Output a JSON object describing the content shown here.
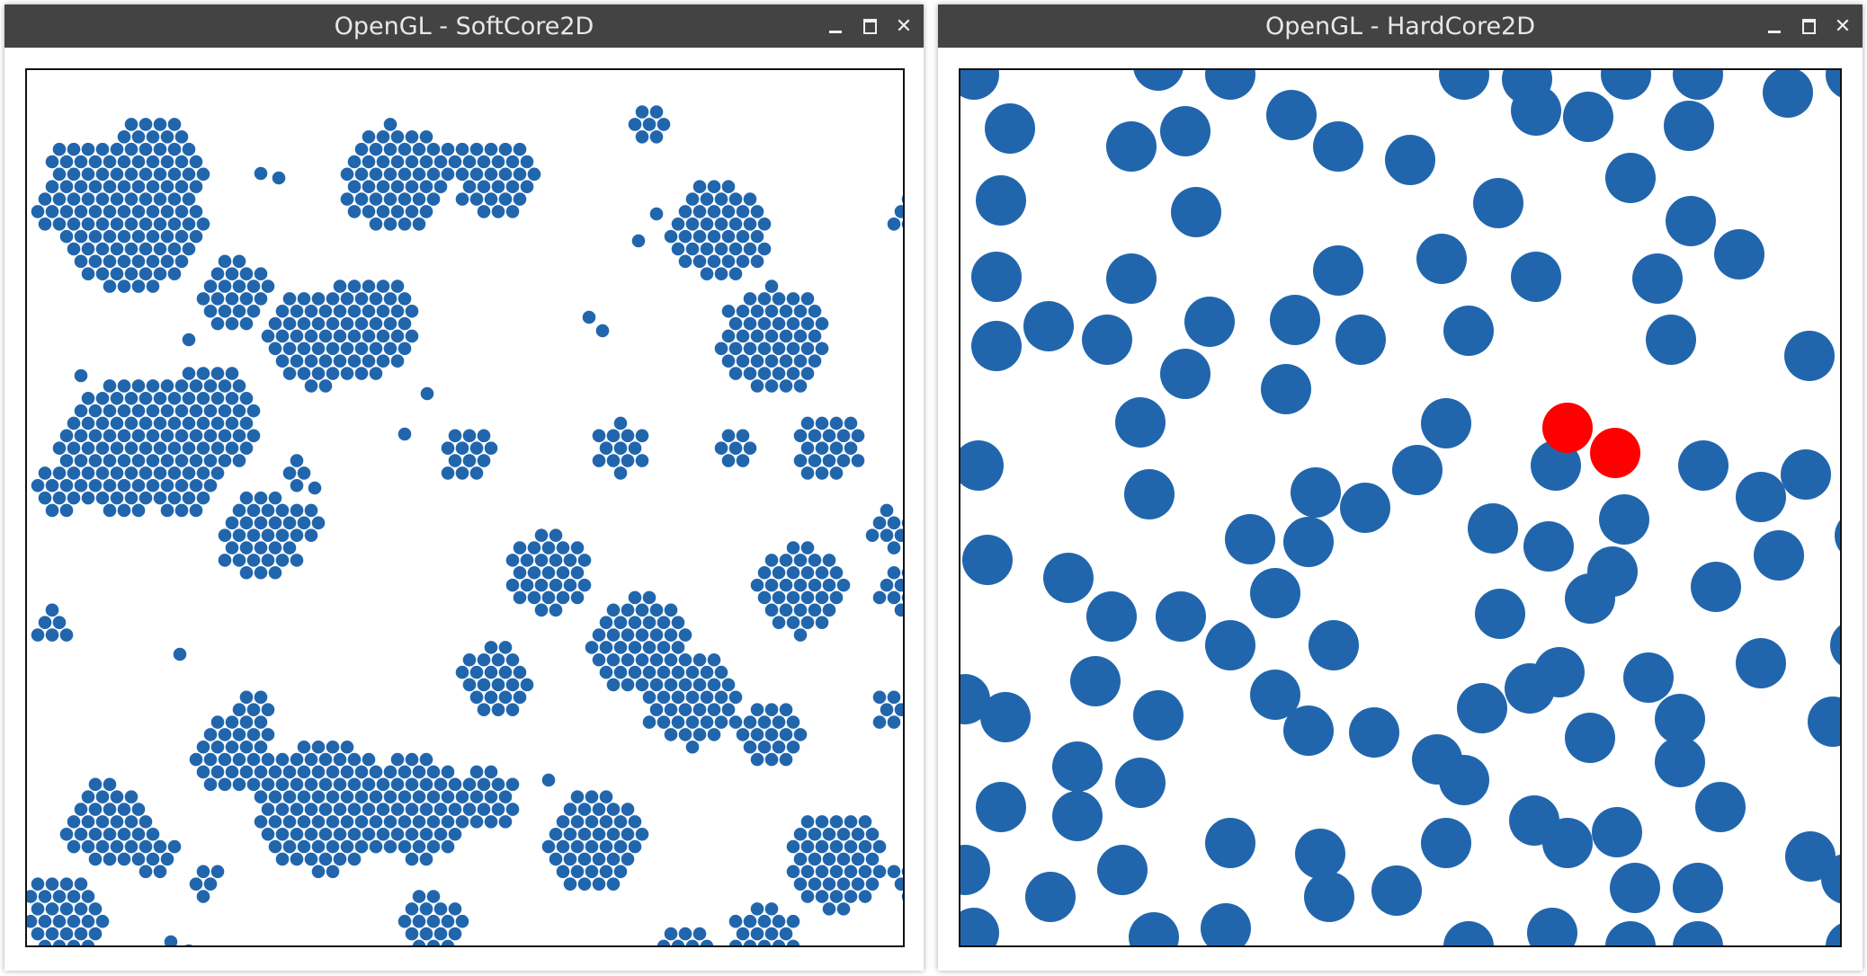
{
  "windows": [
    {
      "title": "OpenGL - SoftCore2D",
      "simulation": "soft-core",
      "particle_color": "#2166ad",
      "controls": [
        "minimize-icon",
        "maximize-icon",
        "close-icon"
      ]
    },
    {
      "title": "OpenGL - HardCore2D",
      "simulation": "hard-core",
      "particle_color": "#2166ad",
      "highlight_color": "#ff0000",
      "highlighted_particles": 2,
      "controls": [
        "minimize-icon",
        "maximize-icon",
        "close-icon"
      ]
    }
  ],
  "colors": {
    "titlebar": "#434343",
    "title_text": "#e8e8e8",
    "particle": "#2166ad",
    "highlight": "#ff0000"
  }
}
